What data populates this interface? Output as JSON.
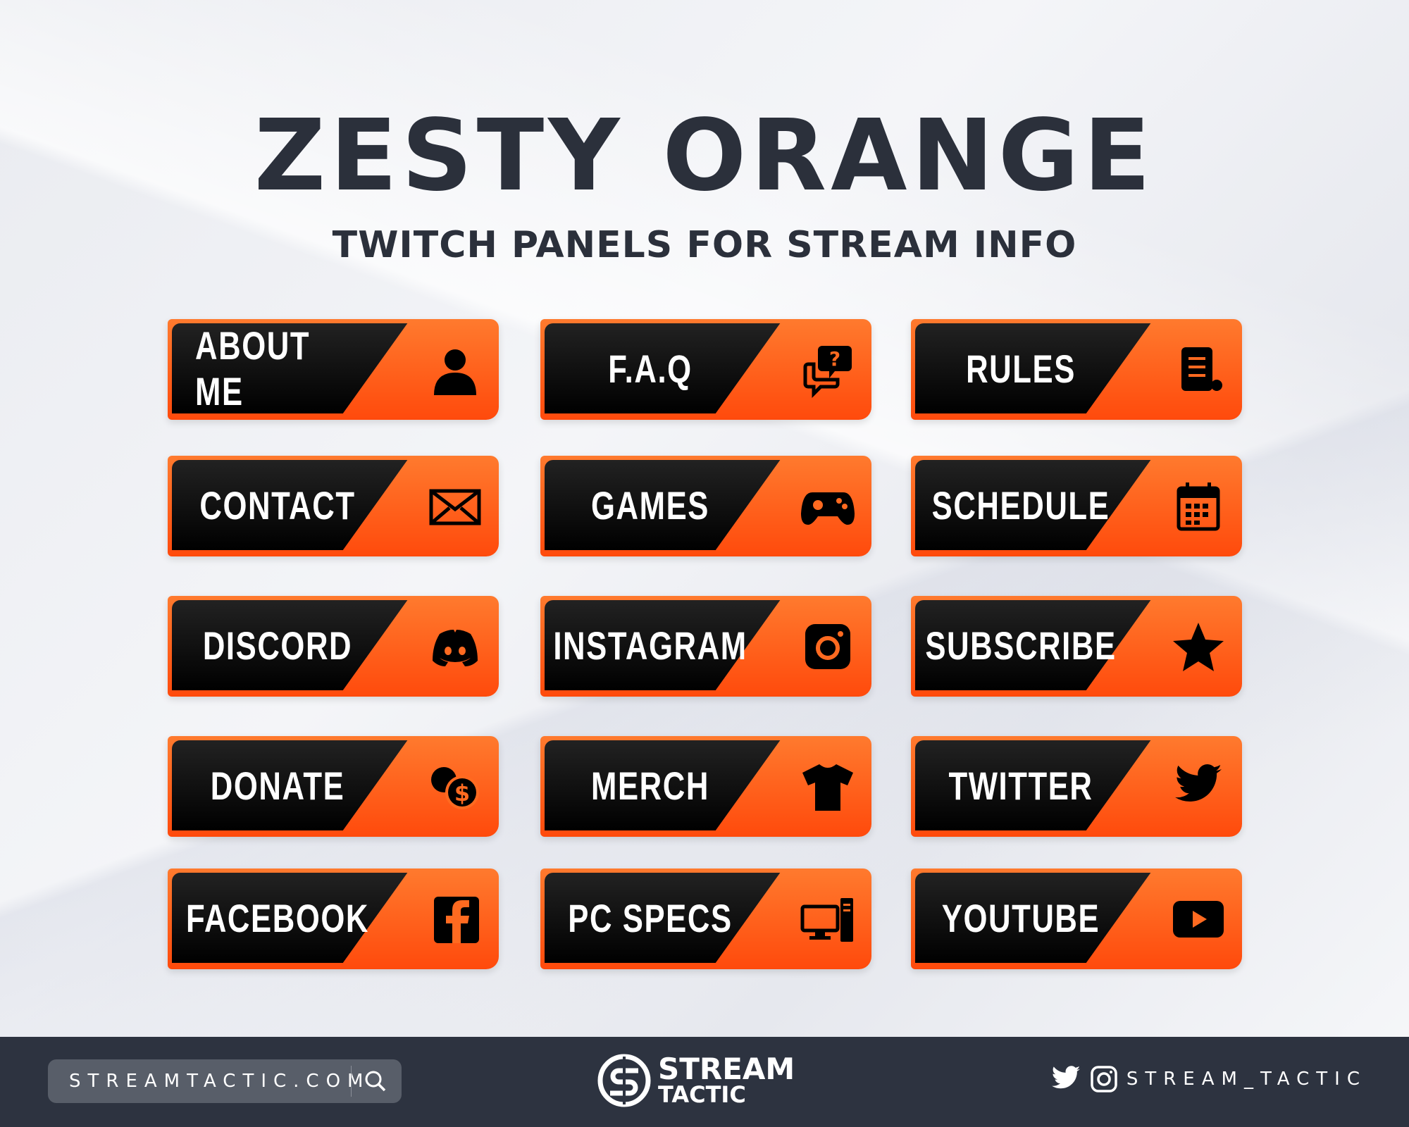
{
  "header": {
    "title": "ZESTY ORANGE",
    "subtitle": "TWITCH PANELS FOR STREAM INFO"
  },
  "colors": {
    "accent": "#ff5a14",
    "panel_dark": "#000000",
    "footer": "#2d3340",
    "title": "#2b303b"
  },
  "panels": [
    {
      "label": "ABOUT ME",
      "icon": "user-icon"
    },
    {
      "label": "F.A.Q",
      "icon": "question-chat-icon"
    },
    {
      "label": "RULES",
      "icon": "scroll-icon"
    },
    {
      "label": "CONTACT",
      "icon": "envelope-icon"
    },
    {
      "label": "GAMES",
      "icon": "gamepad-icon"
    },
    {
      "label": "SCHEDULE",
      "icon": "calendar-icon"
    },
    {
      "label": "DISCORD",
      "icon": "discord-icon"
    },
    {
      "label": "INSTAGRAM",
      "icon": "instagram-icon"
    },
    {
      "label": "SUBSCRIBE",
      "icon": "star-icon"
    },
    {
      "label": "DONATE",
      "icon": "coins-icon"
    },
    {
      "label": "MERCH",
      "icon": "tshirt-icon"
    },
    {
      "label": "TWITTER",
      "icon": "twitter-icon"
    },
    {
      "label": "FACEBOOK",
      "icon": "facebook-icon"
    },
    {
      "label": "PC SPECS",
      "icon": "computer-icon"
    },
    {
      "label": "YOUTUBE",
      "icon": "youtube-icon"
    }
  ],
  "footer": {
    "url": "STREAMTACTIC.COM",
    "logo_line1": "STREAM",
    "logo_line2": "TACTIC",
    "social_handle": "STREAM_TACTIC"
  }
}
